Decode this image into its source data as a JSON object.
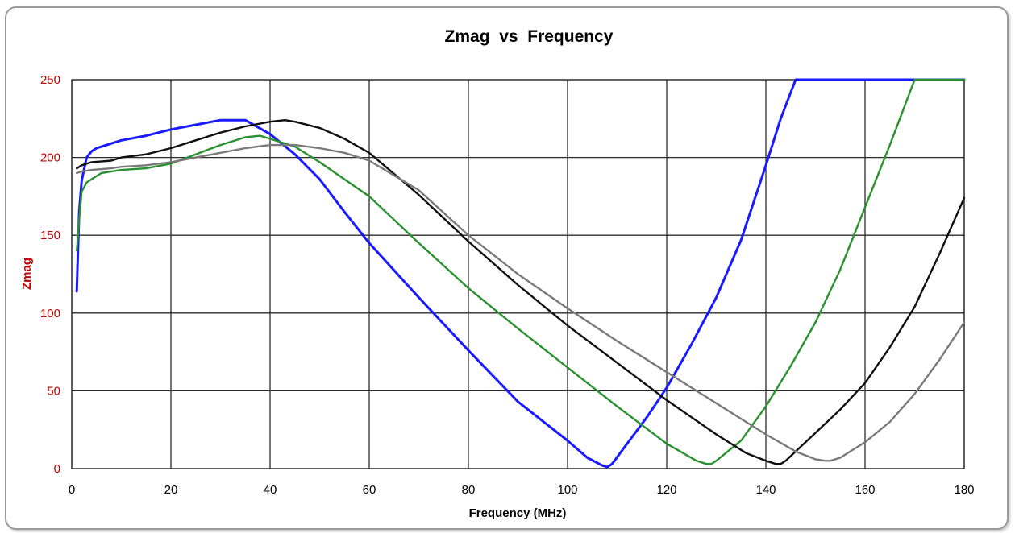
{
  "chart_data": {
    "type": "line",
    "title": "Zmag  vs  Frequency",
    "xlabel": "Frequency (MHz)",
    "ylabel": "Zmag",
    "xlim": [
      0,
      180
    ],
    "ylim": [
      0,
      250
    ],
    "xticks": [
      "0",
      "20",
      "40",
      "60",
      "80",
      "100",
      "120",
      "140",
      "160",
      "180"
    ],
    "yticks": [
      "0",
      "50",
      "100",
      "150",
      "200",
      "250"
    ],
    "grid": true,
    "legend": "none",
    "series": [
      {
        "color": "#1a1aff",
        "x": [
          1,
          1.5,
          2,
          3,
          4,
          5,
          6,
          8,
          10,
          15,
          20,
          25,
          30,
          35,
          40,
          45,
          50,
          55,
          60,
          70,
          80,
          90,
          100,
          104,
          107,
          108,
          109,
          112,
          116,
          120,
          125,
          130,
          135,
          140,
          143,
          146,
          148,
          150,
          160,
          170,
          180
        ],
        "y": [
          114,
          165,
          185,
          200,
          204,
          206,
          207,
          209,
          211,
          214,
          218,
          221,
          224,
          224,
          215,
          202,
          186,
          165,
          145,
          110,
          76,
          43,
          18,
          7,
          2,
          1,
          3,
          16,
          33,
          52,
          80,
          110,
          147,
          195,
          225,
          250,
          250,
          250,
          250,
          250,
          250
        ]
      },
      {
        "color": "#2a9030",
        "x": [
          1,
          1.5,
          2,
          3,
          4,
          6,
          10,
          15,
          20,
          25,
          30,
          35,
          38,
          40,
          45,
          50,
          60,
          70,
          80,
          90,
          100,
          110,
          120,
          126,
          128,
          129,
          130,
          135,
          140,
          145,
          150,
          155,
          160,
          165,
          170,
          172,
          180
        ],
        "y": [
          140,
          160,
          178,
          184,
          186,
          190,
          192,
          193,
          196,
          202,
          208,
          213,
          214,
          212,
          207,
          197,
          175,
          145,
          116,
          90,
          65,
          40,
          16,
          5,
          3,
          3,
          5,
          18,
          40,
          66,
          94,
          128,
          168,
          208,
          250,
          250,
          250
        ]
      },
      {
        "color": "#101010",
        "x": [
          1,
          2,
          4,
          8,
          10,
          15,
          20,
          25,
          30,
          35,
          40,
          43,
          45,
          50,
          55,
          60,
          70,
          80,
          90,
          100,
          110,
          120,
          130,
          136,
          140,
          142,
          143,
          144,
          147,
          150,
          155,
          160,
          165,
          170,
          175,
          180
        ],
        "y": [
          193,
          195,
          197,
          198,
          200,
          202,
          206,
          211,
          216,
          220,
          223,
          224,
          223,
          219,
          212,
          203,
          176,
          146,
          118,
          92,
          68,
          44,
          22,
          10,
          5,
          3,
          3,
          5,
          14,
          23,
          38,
          55,
          78,
          104,
          138,
          174
        ]
      },
      {
        "color": "#7a7a7a",
        "x": [
          1,
          2,
          4,
          8,
          10,
          15,
          20,
          25,
          30,
          35,
          40,
          45,
          50,
          55,
          60,
          70,
          80,
          90,
          100,
          110,
          120,
          130,
          140,
          146,
          150,
          152,
          153,
          155,
          158,
          160,
          165,
          170,
          175,
          180
        ],
        "y": [
          190,
          191,
          192,
          193,
          194,
          195,
          197,
          200,
          203,
          206,
          208,
          208,
          206,
          203,
          198,
          179,
          150,
          125,
          103,
          82,
          62,
          42,
          22,
          11,
          6,
          5,
          5,
          7,
          13,
          17,
          30,
          48,
          70,
          94
        ]
      }
    ]
  }
}
